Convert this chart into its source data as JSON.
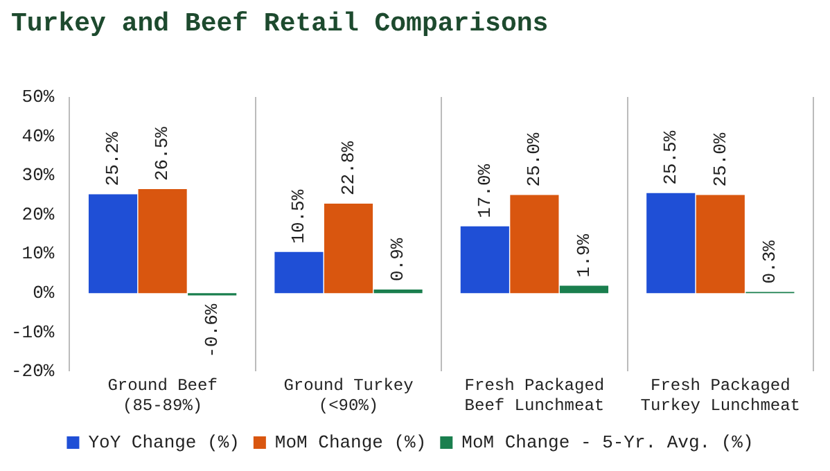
{
  "chart_data": {
    "type": "bar",
    "title": "Turkey and Beef Retail Comparisons",
    "categories": [
      "Ground Beef (85-89%)",
      "Ground Turkey (<90%)",
      "Fresh Packaged Beef Lunchmeat",
      "Fresh Packaged Turkey Lunchmeat"
    ],
    "series": [
      {
        "name": "YoY Change (%)",
        "color": "#1f4fd6",
        "values": [
          25.2,
          10.5,
          17.0,
          25.5
        ],
        "value_labels": [
          "25.2%",
          "10.5%",
          "17.0%",
          "25.5%"
        ]
      },
      {
        "name": "MoM Change (%)",
        "color": "#d9560f",
        "values": [
          26.5,
          22.8,
          25.0,
          25.0
        ],
        "value_labels": [
          "26.5%",
          "22.8%",
          "25.0%",
          "25.0%"
        ]
      },
      {
        "name": "MoM Change - 5-Yr. Avg. (%)",
        "color": "#1a7f4e",
        "values": [
          -0.6,
          0.9,
          1.9,
          0.3
        ],
        "value_labels": [
          "-0.6%",
          "0.9%",
          "1.9%",
          "0.3%"
        ]
      }
    ],
    "ylim": [
      -20,
      50
    ],
    "yticks": [
      {
        "value": -20,
        "label": "-20%"
      },
      {
        "value": -10,
        "label": "-10%"
      },
      {
        "value": 0,
        "label": "0%"
      },
      {
        "value": 10,
        "label": "10%"
      },
      {
        "value": 20,
        "label": "20%"
      },
      {
        "value": 30,
        "label": "30%"
      },
      {
        "value": 40,
        "label": "40%"
      },
      {
        "value": 50,
        "label": "50%"
      }
    ],
    "grid": "x",
    "legend": "bottom"
  }
}
